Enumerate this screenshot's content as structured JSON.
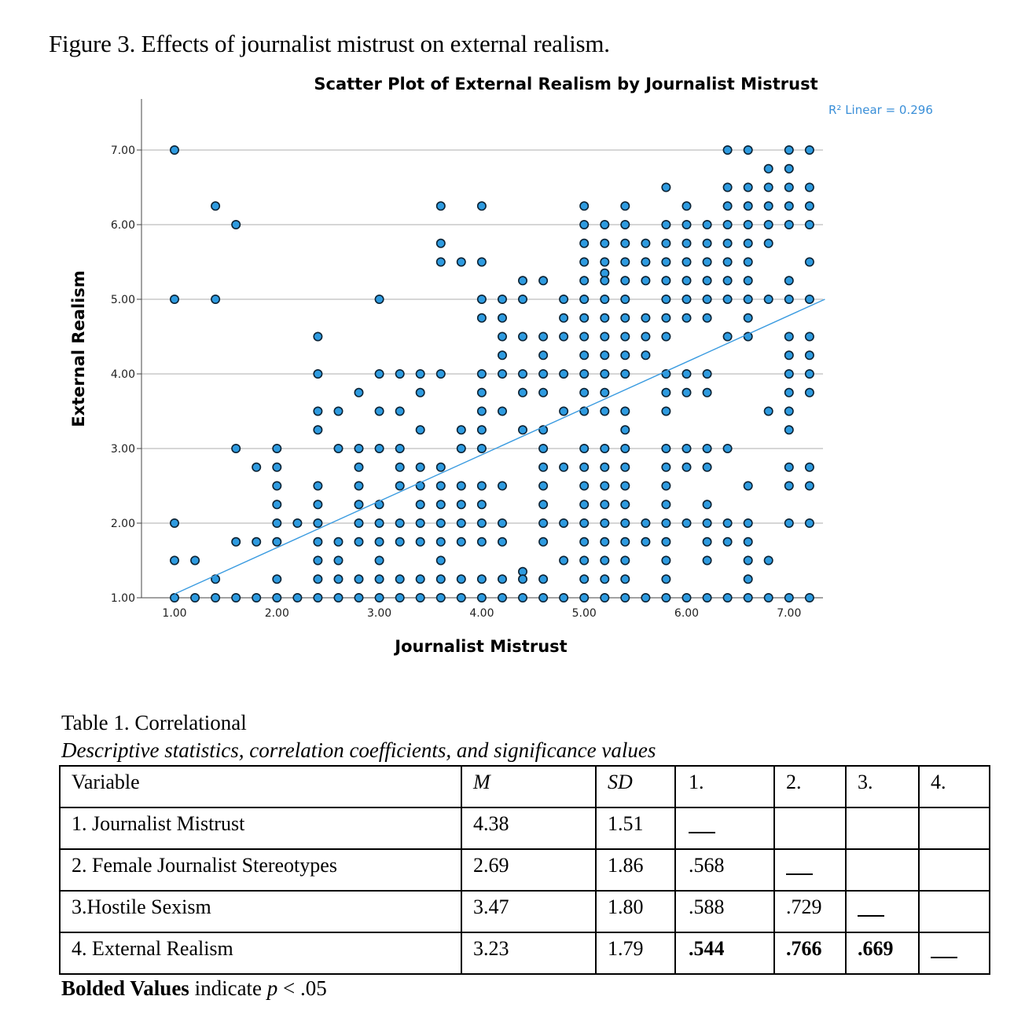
{
  "figure_caption": "Figure 3. Effects of journalist mistrust on external realism.",
  "chart_data": {
    "type": "scatter",
    "title": "Scatter Plot of External Realism by Journalist Mistrust",
    "xlabel": "Journalist Mistrust",
    "ylabel": "External Realism",
    "xlim": [
      0.7,
      7.35
    ],
    "ylim": [
      1.0,
      7.35
    ],
    "x_ticks": [
      "1.00",
      "2.00",
      "3.00",
      "4.00",
      "5.00",
      "6.00",
      "7.00"
    ],
    "y_ticks": [
      "1.00",
      "2.00",
      "3.00",
      "4.00",
      "5.00",
      "6.00",
      "7.00"
    ],
    "grid": "horizontal",
    "annotation": "R² Linear = 0.296",
    "fit_line": {
      "x": [
        1.0,
        7.35
      ],
      "y": [
        1.05,
        5.0
      ]
    },
    "marker_color": "#2e9be0",
    "line_color": "#3a9be0",
    "points": [
      [
        1.0,
        7.0
      ],
      [
        1.4,
        6.25
      ],
      [
        1.6,
        6.0
      ],
      [
        1.0,
        5.0
      ],
      [
        1.4,
        5.0
      ],
      [
        1.0,
        2.0
      ],
      [
        1.0,
        1.5
      ],
      [
        1.2,
        1.5
      ],
      [
        1.0,
        1.0
      ],
      [
        1.2,
        1.0
      ],
      [
        1.4,
        1.25
      ],
      [
        1.4,
        1.0
      ],
      [
        1.6,
        3.0
      ],
      [
        1.6,
        1.75
      ],
      [
        1.8,
        2.75
      ],
      [
        1.8,
        1.75
      ],
      [
        1.6,
        1.0
      ],
      [
        1.8,
        1.0
      ],
      [
        2.0,
        3.0
      ],
      [
        2.0,
        2.75
      ],
      [
        2.0,
        2.5
      ],
      [
        2.0,
        2.25
      ],
      [
        2.0,
        2.0
      ],
      [
        2.0,
        1.75
      ],
      [
        2.0,
        1.25
      ],
      [
        2.0,
        1.0
      ],
      [
        2.2,
        2.0
      ],
      [
        2.2,
        1.0
      ],
      [
        2.4,
        4.5
      ],
      [
        2.4,
        4.0
      ],
      [
        2.4,
        3.5
      ],
      [
        2.4,
        3.25
      ],
      [
        2.4,
        2.5
      ],
      [
        2.4,
        2.25
      ],
      [
        2.4,
        2.0
      ],
      [
        2.4,
        1.75
      ],
      [
        2.4,
        1.5
      ],
      [
        2.4,
        1.25
      ],
      [
        2.4,
        1.0
      ],
      [
        2.6,
        3.5
      ],
      [
        2.6,
        3.0
      ],
      [
        2.6,
        1.75
      ],
      [
        2.6,
        1.5
      ],
      [
        2.6,
        1.25
      ],
      [
        2.6,
        1.0
      ],
      [
        2.8,
        3.75
      ],
      [
        2.8,
        3.0
      ],
      [
        2.8,
        2.75
      ],
      [
        2.8,
        2.5
      ],
      [
        2.8,
        2.25
      ],
      [
        2.8,
        2.0
      ],
      [
        2.8,
        1.75
      ],
      [
        2.8,
        1.25
      ],
      [
        2.8,
        1.0
      ],
      [
        3.0,
        5.0
      ],
      [
        3.0,
        4.0
      ],
      [
        3.0,
        3.5
      ],
      [
        3.0,
        3.0
      ],
      [
        3.0,
        2.25
      ],
      [
        3.0,
        2.0
      ],
      [
        3.0,
        1.75
      ],
      [
        3.0,
        1.5
      ],
      [
        3.0,
        1.25
      ],
      [
        3.0,
        1.0
      ],
      [
        3.2,
        4.0
      ],
      [
        3.2,
        3.5
      ],
      [
        3.2,
        3.0
      ],
      [
        3.2,
        2.75
      ],
      [
        3.2,
        2.5
      ],
      [
        3.2,
        2.0
      ],
      [
        3.2,
        1.75
      ],
      [
        3.2,
        1.25
      ],
      [
        3.2,
        1.0
      ],
      [
        3.4,
        4.0
      ],
      [
        3.4,
        3.75
      ],
      [
        3.4,
        3.25
      ],
      [
        3.4,
        2.75
      ],
      [
        3.4,
        2.5
      ],
      [
        3.4,
        2.25
      ],
      [
        3.4,
        2.0
      ],
      [
        3.4,
        1.75
      ],
      [
        3.4,
        1.25
      ],
      [
        3.4,
        1.0
      ],
      [
        3.6,
        6.25
      ],
      [
        3.6,
        5.75
      ],
      [
        3.6,
        5.5
      ],
      [
        3.6,
        4.0
      ],
      [
        3.6,
        2.75
      ],
      [
        3.6,
        2.5
      ],
      [
        3.6,
        2.25
      ],
      [
        3.6,
        2.0
      ],
      [
        3.6,
        1.75
      ],
      [
        3.6,
        1.5
      ],
      [
        3.6,
        1.25
      ],
      [
        3.6,
        1.0
      ],
      [
        3.8,
        5.5
      ],
      [
        3.8,
        3.25
      ],
      [
        3.8,
        3.0
      ],
      [
        3.8,
        2.5
      ],
      [
        3.8,
        2.25
      ],
      [
        3.8,
        2.0
      ],
      [
        3.8,
        1.75
      ],
      [
        3.8,
        1.25
      ],
      [
        3.8,
        1.0
      ],
      [
        4.0,
        6.25
      ],
      [
        4.0,
        5.5
      ],
      [
        4.0,
        5.0
      ],
      [
        4.0,
        4.75
      ],
      [
        4.0,
        4.0
      ],
      [
        4.0,
        3.75
      ],
      [
        4.0,
        3.5
      ],
      [
        4.0,
        3.25
      ],
      [
        4.0,
        3.0
      ],
      [
        4.0,
        2.5
      ],
      [
        4.0,
        2.25
      ],
      [
        4.0,
        2.0
      ],
      [
        4.0,
        1.75
      ],
      [
        4.0,
        1.25
      ],
      [
        4.0,
        1.0
      ],
      [
        4.2,
        5.0
      ],
      [
        4.2,
        4.75
      ],
      [
        4.2,
        4.5
      ],
      [
        4.2,
        4.25
      ],
      [
        4.2,
        4.0
      ],
      [
        4.2,
        3.5
      ],
      [
        4.2,
        2.5
      ],
      [
        4.2,
        2.0
      ],
      [
        4.2,
        1.75
      ],
      [
        4.2,
        1.25
      ],
      [
        4.2,
        1.0
      ],
      [
        4.4,
        5.25
      ],
      [
        4.4,
        5.0
      ],
      [
        4.4,
        4.5
      ],
      [
        4.4,
        4.0
      ],
      [
        4.4,
        3.75
      ],
      [
        4.4,
        3.25
      ],
      [
        4.4,
        1.35
      ],
      [
        4.4,
        1.25
      ],
      [
        4.4,
        1.0
      ],
      [
        4.6,
        5.25
      ],
      [
        4.6,
        4.5
      ],
      [
        4.6,
        4.25
      ],
      [
        4.6,
        4.0
      ],
      [
        4.6,
        3.75
      ],
      [
        4.6,
        3.25
      ],
      [
        4.6,
        3.0
      ],
      [
        4.6,
        2.75
      ],
      [
        4.6,
        2.5
      ],
      [
        4.6,
        2.25
      ],
      [
        4.6,
        2.0
      ],
      [
        4.6,
        1.75
      ],
      [
        4.6,
        1.25
      ],
      [
        4.6,
        1.0
      ],
      [
        4.8,
        5.0
      ],
      [
        4.8,
        4.75
      ],
      [
        4.8,
        4.5
      ],
      [
        4.8,
        4.0
      ],
      [
        4.8,
        3.5
      ],
      [
        4.8,
        2.75
      ],
      [
        4.8,
        2.0
      ],
      [
        4.8,
        1.5
      ],
      [
        4.8,
        1.0
      ],
      [
        5.0,
        6.25
      ],
      [
        5.0,
        6.0
      ],
      [
        5.0,
        5.75
      ],
      [
        5.0,
        5.5
      ],
      [
        5.0,
        5.25
      ],
      [
        5.0,
        5.0
      ],
      [
        5.0,
        4.75
      ],
      [
        5.0,
        4.5
      ],
      [
        5.0,
        4.25
      ],
      [
        5.0,
        4.0
      ],
      [
        5.0,
        3.75
      ],
      [
        5.0,
        3.5
      ],
      [
        5.0,
        3.0
      ],
      [
        5.0,
        2.75
      ],
      [
        5.0,
        2.5
      ],
      [
        5.0,
        2.25
      ],
      [
        5.0,
        2.0
      ],
      [
        5.0,
        1.75
      ],
      [
        5.0,
        1.5
      ],
      [
        5.0,
        1.25
      ],
      [
        5.0,
        1.0
      ],
      [
        5.2,
        6.0
      ],
      [
        5.2,
        5.75
      ],
      [
        5.2,
        5.5
      ],
      [
        5.2,
        5.35
      ],
      [
        5.2,
        5.25
      ],
      [
        5.2,
        5.0
      ],
      [
        5.2,
        4.75
      ],
      [
        5.2,
        4.5
      ],
      [
        5.2,
        4.25
      ],
      [
        5.2,
        4.0
      ],
      [
        5.2,
        3.75
      ],
      [
        5.2,
        3.5
      ],
      [
        5.2,
        3.0
      ],
      [
        5.2,
        2.75
      ],
      [
        5.2,
        2.5
      ],
      [
        5.2,
        2.25
      ],
      [
        5.2,
        2.0
      ],
      [
        5.2,
        1.75
      ],
      [
        5.2,
        1.5
      ],
      [
        5.2,
        1.25
      ],
      [
        5.2,
        1.0
      ],
      [
        5.4,
        6.25
      ],
      [
        5.4,
        6.0
      ],
      [
        5.4,
        5.75
      ],
      [
        5.4,
        5.5
      ],
      [
        5.4,
        5.25
      ],
      [
        5.4,
        5.0
      ],
      [
        5.4,
        4.75
      ],
      [
        5.4,
        4.5
      ],
      [
        5.4,
        4.25
      ],
      [
        5.4,
        4.0
      ],
      [
        5.4,
        3.5
      ],
      [
        5.4,
        3.25
      ],
      [
        5.4,
        3.0
      ],
      [
        5.4,
        2.75
      ],
      [
        5.4,
        2.5
      ],
      [
        5.4,
        2.25
      ],
      [
        5.4,
        2.0
      ],
      [
        5.4,
        1.75
      ],
      [
        5.4,
        1.5
      ],
      [
        5.4,
        1.25
      ],
      [
        5.4,
        1.0
      ],
      [
        5.6,
        5.75
      ],
      [
        5.6,
        5.5
      ],
      [
        5.6,
        5.25
      ],
      [
        5.6,
        4.75
      ],
      [
        5.6,
        4.5
      ],
      [
        5.6,
        4.25
      ],
      [
        5.6,
        2.0
      ],
      [
        5.6,
        1.75
      ],
      [
        5.6,
        1.0
      ],
      [
        5.8,
        6.5
      ],
      [
        5.8,
        6.0
      ],
      [
        5.8,
        5.75
      ],
      [
        5.8,
        5.5
      ],
      [
        5.8,
        5.25
      ],
      [
        5.8,
        5.0
      ],
      [
        5.8,
        4.75
      ],
      [
        5.8,
        4.5
      ],
      [
        5.8,
        4.0
      ],
      [
        5.8,
        3.75
      ],
      [
        5.8,
        3.5
      ],
      [
        5.8,
        3.0
      ],
      [
        5.8,
        2.75
      ],
      [
        5.8,
        2.5
      ],
      [
        5.8,
        2.25
      ],
      [
        5.8,
        2.0
      ],
      [
        5.8,
        1.75
      ],
      [
        5.8,
        1.5
      ],
      [
        5.8,
        1.25
      ],
      [
        5.8,
        1.0
      ],
      [
        6.0,
        6.25
      ],
      [
        6.0,
        6.0
      ],
      [
        6.0,
        5.75
      ],
      [
        6.0,
        5.5
      ],
      [
        6.0,
        5.25
      ],
      [
        6.0,
        5.0
      ],
      [
        6.0,
        4.75
      ],
      [
        6.0,
        4.0
      ],
      [
        6.0,
        3.75
      ],
      [
        6.0,
        3.0
      ],
      [
        6.0,
        2.75
      ],
      [
        6.0,
        2.0
      ],
      [
        6.0,
        1.0
      ],
      [
        6.2,
        6.0
      ],
      [
        6.2,
        5.75
      ],
      [
        6.2,
        5.5
      ],
      [
        6.2,
        5.25
      ],
      [
        6.2,
        5.0
      ],
      [
        6.2,
        4.75
      ],
      [
        6.2,
        4.0
      ],
      [
        6.2,
        3.75
      ],
      [
        6.2,
        3.0
      ],
      [
        6.2,
        2.75
      ],
      [
        6.2,
        2.25
      ],
      [
        6.2,
        2.0
      ],
      [
        6.2,
        1.75
      ],
      [
        6.2,
        1.5
      ],
      [
        6.2,
        1.0
      ],
      [
        6.4,
        7.0
      ],
      [
        6.4,
        6.5
      ],
      [
        6.4,
        6.25
      ],
      [
        6.4,
        6.0
      ],
      [
        6.4,
        5.75
      ],
      [
        6.4,
        5.5
      ],
      [
        6.4,
        5.25
      ],
      [
        6.4,
        5.0
      ],
      [
        6.4,
        4.5
      ],
      [
        6.4,
        3.0
      ],
      [
        6.4,
        2.0
      ],
      [
        6.4,
        1.75
      ],
      [
        6.4,
        1.0
      ],
      [
        6.6,
        7.0
      ],
      [
        6.6,
        6.5
      ],
      [
        6.6,
        6.25
      ],
      [
        6.6,
        6.0
      ],
      [
        6.6,
        5.75
      ],
      [
        6.6,
        5.5
      ],
      [
        6.6,
        5.25
      ],
      [
        6.6,
        5.0
      ],
      [
        6.6,
        4.75
      ],
      [
        6.6,
        4.5
      ],
      [
        6.6,
        2.5
      ],
      [
        6.6,
        2.0
      ],
      [
        6.6,
        1.75
      ],
      [
        6.6,
        1.5
      ],
      [
        6.6,
        1.25
      ],
      [
        6.6,
        1.0
      ],
      [
        6.8,
        6.75
      ],
      [
        6.8,
        6.5
      ],
      [
        6.8,
        6.25
      ],
      [
        6.8,
        6.0
      ],
      [
        6.8,
        5.75
      ],
      [
        6.8,
        5.0
      ],
      [
        6.8,
        3.5
      ],
      [
        6.8,
        1.5
      ],
      [
        6.8,
        1.0
      ],
      [
        7.0,
        7.0
      ],
      [
        7.0,
        6.75
      ],
      [
        7.0,
        6.5
      ],
      [
        7.0,
        6.25
      ],
      [
        7.0,
        6.0
      ],
      [
        7.0,
        5.25
      ],
      [
        7.0,
        5.0
      ],
      [
        7.0,
        4.5
      ],
      [
        7.0,
        4.25
      ],
      [
        7.0,
        4.0
      ],
      [
        7.0,
        3.75
      ],
      [
        7.0,
        3.5
      ],
      [
        7.0,
        3.25
      ],
      [
        7.0,
        2.75
      ],
      [
        7.0,
        2.5
      ],
      [
        7.0,
        2.0
      ],
      [
        7.0,
        1.0
      ],
      [
        7.2,
        7.0
      ],
      [
        7.2,
        6.5
      ],
      [
        7.2,
        6.25
      ],
      [
        7.2,
        6.0
      ],
      [
        7.2,
        5.5
      ],
      [
        7.2,
        5.0
      ],
      [
        7.2,
        4.5
      ],
      [
        7.2,
        4.25
      ],
      [
        7.2,
        4.0
      ],
      [
        7.2,
        3.75
      ],
      [
        7.2,
        2.75
      ],
      [
        7.2,
        2.5
      ],
      [
        7.2,
        2.0
      ],
      [
        7.2,
        1.0
      ]
    ]
  },
  "table": {
    "caption": "Table 1. Correlational",
    "subcaption": "Descriptive statistics, correlation coefficients, and significance values",
    "headers": [
      "Variable",
      "M",
      "SD",
      "1.",
      "2.",
      "3.",
      "4."
    ],
    "rows": [
      {
        "variable": "1. Journalist Mistrust",
        "m": "4.38",
        "sd": "1.51",
        "c1": "",
        "c2": "",
        "c3": "",
        "c4": ""
      },
      {
        "variable": "2. Female Journalist Stereotypes",
        "m": "2.69",
        "sd": "1.86",
        "c1": ".568",
        "c2": "",
        "c3": "",
        "c4": ""
      },
      {
        "variable": "3.Hostile Sexism",
        "m": "3.47",
        "sd": "1.80",
        "c1": ".588",
        "c2": ".729",
        "c3": "",
        "c4": ""
      },
      {
        "variable": "4. External Realism",
        "m": "3.23",
        "sd": "1.79",
        "c1": ".544",
        "c2": ".766",
        "c3": ".669",
        "c4": ""
      }
    ],
    "footnote_bold": "Bolded Values",
    "footnote_rest": " indicate ",
    "footnote_p": "p",
    "footnote_tail": " < .05"
  }
}
